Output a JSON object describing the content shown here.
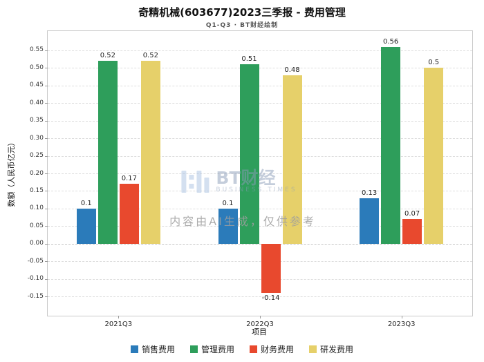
{
  "title": "奇精机械(603677)2023三季报 - 费用管理",
  "subtitle": "Q1-Q3 · BT财经绘制",
  "watermark": {
    "brand": "BT财经",
    "brand_sub": "BUSINESS TIMES",
    "disclaimer": "内容由AI生成，仅供参考"
  },
  "chart_data": {
    "type": "bar",
    "title": "奇精机械(603677)2023三季报 - 费用管理",
    "subtitle": "Q1-Q3 · BT财经绘制",
    "categories": [
      "2021Q3",
      "2022Q3",
      "2023Q3"
    ],
    "series": [
      {
        "name": "销售费用",
        "color": "#2b7bba",
        "values": [
          0.1,
          0.1,
          0.13
        ]
      },
      {
        "name": "管理费用",
        "color": "#2e9e5b",
        "values": [
          0.52,
          0.51,
          0.56
        ]
      },
      {
        "name": "财务费用",
        "color": "#e8492e",
        "values": [
          0.17,
          -0.14,
          0.07
        ]
      },
      {
        "name": "研发费用",
        "color": "#e6d06a",
        "values": [
          0.52,
          0.48,
          0.5
        ]
      }
    ],
    "xlabel": "项目",
    "ylabel": "数额（人民币亿元）",
    "ylim": [
      -0.15,
      0.55
    ],
    "ytick_step": 0.05,
    "grid": true,
    "legend_position": "bottom"
  }
}
